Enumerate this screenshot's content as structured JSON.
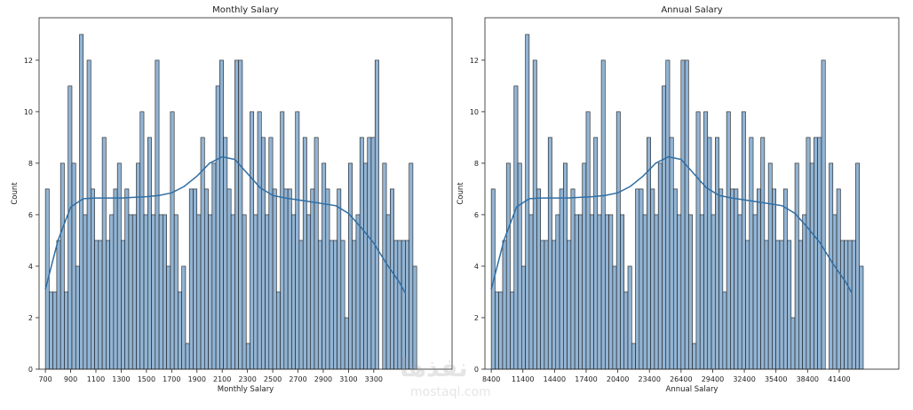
{
  "chart_data": [
    {
      "type": "bar",
      "title": "Monthly Salary",
      "xlabel": "Monthly Salary",
      "ylabel": "Count",
      "xlim": [
        650,
        3920
      ],
      "ylim": [
        0,
        13.65
      ],
      "xticks": [
        700,
        900,
        1100,
        1300,
        1500,
        1700,
        1900,
        2100,
        2300,
        2500,
        2700,
        2900,
        3100,
        3300
      ],
      "yticks": [
        0,
        2,
        4,
        6,
        8,
        10,
        12
      ],
      "bins_start": 700,
      "bin_width": 30,
      "counts": [
        7,
        3,
        3,
        5,
        8,
        3,
        11,
        8,
        4,
        13,
        6,
        12,
        7,
        5,
        5,
        9,
        5,
        6,
        7,
        8,
        5,
        7,
        6,
        6,
        8,
        10,
        6,
        9,
        6,
        12,
        6,
        6,
        4,
        10,
        6,
        3,
        4,
        1,
        7,
        7,
        6,
        9,
        7,
        6,
        8,
        11,
        12,
        9,
        7,
        6,
        12,
        12,
        6,
        1,
        10,
        6,
        10,
        9,
        6,
        9,
        7,
        3,
        10,
        7,
        7,
        6,
        10,
        5,
        9,
        6,
        7,
        9,
        5,
        8,
        7,
        5,
        5,
        7,
        5,
        2,
        8,
        5,
        6,
        9,
        8,
        9,
        9,
        12,
        0,
        8,
        6,
        7,
        5,
        5,
        5,
        5,
        8,
        4
      ],
      "kde": [
        [
          700,
          3.1
        ],
        [
          800,
          5.0
        ],
        [
          900,
          6.3
        ],
        [
          1000,
          6.62
        ],
        [
          1100,
          6.65
        ],
        [
          1300,
          6.65
        ],
        [
          1500,
          6.7
        ],
        [
          1600,
          6.75
        ],
        [
          1700,
          6.85
        ],
        [
          1800,
          7.1
        ],
        [
          1900,
          7.5
        ],
        [
          2000,
          8.0
        ],
        [
          2100,
          8.25
        ],
        [
          2200,
          8.15
        ],
        [
          2300,
          7.6
        ],
        [
          2400,
          7.05
        ],
        [
          2500,
          6.75
        ],
        [
          2600,
          6.65
        ],
        [
          2800,
          6.5
        ],
        [
          3000,
          6.35
        ],
        [
          3100,
          6.05
        ],
        [
          3200,
          5.5
        ],
        [
          3300,
          4.9
        ],
        [
          3400,
          4.1
        ],
        [
          3500,
          3.4
        ],
        [
          3550,
          2.95
        ]
      ],
      "grid": false,
      "legend": "none"
    },
    {
      "type": "bar",
      "title": "Annual Salary",
      "xlabel": "Annual Salary",
      "ylabel": "Count",
      "xlim": [
        7800,
        47050
      ],
      "ylim": [
        0,
        13.65
      ],
      "xticks": [
        8400,
        11400,
        14400,
        17400,
        20400,
        23400,
        26400,
        29400,
        32400,
        35400,
        38400,
        41400
      ],
      "yticks": [
        0,
        2,
        4,
        6,
        8,
        10,
        12
      ],
      "bins_start": 8400,
      "bin_width": 360,
      "counts": [
        7,
        3,
        3,
        5,
        8,
        3,
        11,
        8,
        4,
        13,
        6,
        12,
        7,
        5,
        5,
        9,
        5,
        6,
        7,
        8,
        5,
        7,
        6,
        6,
        8,
        10,
        6,
        9,
        6,
        12,
        6,
        6,
        4,
        10,
        6,
        3,
        4,
        1,
        7,
        7,
        6,
        9,
        7,
        6,
        8,
        11,
        12,
        9,
        7,
        6,
        12,
        12,
        6,
        1,
        10,
        6,
        10,
        9,
        6,
        9,
        7,
        3,
        10,
        7,
        7,
        6,
        10,
        5,
        9,
        6,
        7,
        9,
        5,
        8,
        7,
        5,
        5,
        7,
        5,
        2,
        8,
        5,
        6,
        9,
        8,
        9,
        9,
        12,
        0,
        8,
        6,
        7,
        5,
        5,
        5,
        5,
        8,
        4
      ],
      "kde": [
        [
          8400,
          3.1
        ],
        [
          9600,
          5.0
        ],
        [
          10800,
          6.3
        ],
        [
          12000,
          6.62
        ],
        [
          13200,
          6.65
        ],
        [
          15600,
          6.65
        ],
        [
          18000,
          6.7
        ],
        [
          19200,
          6.75
        ],
        [
          20400,
          6.85
        ],
        [
          21600,
          7.1
        ],
        [
          22800,
          7.5
        ],
        [
          24000,
          8.0
        ],
        [
          25200,
          8.25
        ],
        [
          26400,
          8.15
        ],
        [
          27600,
          7.6
        ],
        [
          28800,
          7.05
        ],
        [
          30000,
          6.75
        ],
        [
          31200,
          6.65
        ],
        [
          33600,
          6.5
        ],
        [
          36000,
          6.35
        ],
        [
          37200,
          6.05
        ],
        [
          38400,
          5.5
        ],
        [
          39600,
          4.9
        ],
        [
          40800,
          4.1
        ],
        [
          42000,
          3.4
        ],
        [
          42600,
          2.95
        ]
      ],
      "grid": false,
      "legend": "none"
    }
  ],
  "colors": {
    "bar_fill": "#92b4d4",
    "bar_edge": "#1a1a1a",
    "kde_line": "#2f6fa6",
    "axis": "#222222"
  },
  "watermark": {
    "line1": "نفذها",
    "line2": "mostaql.com"
  }
}
